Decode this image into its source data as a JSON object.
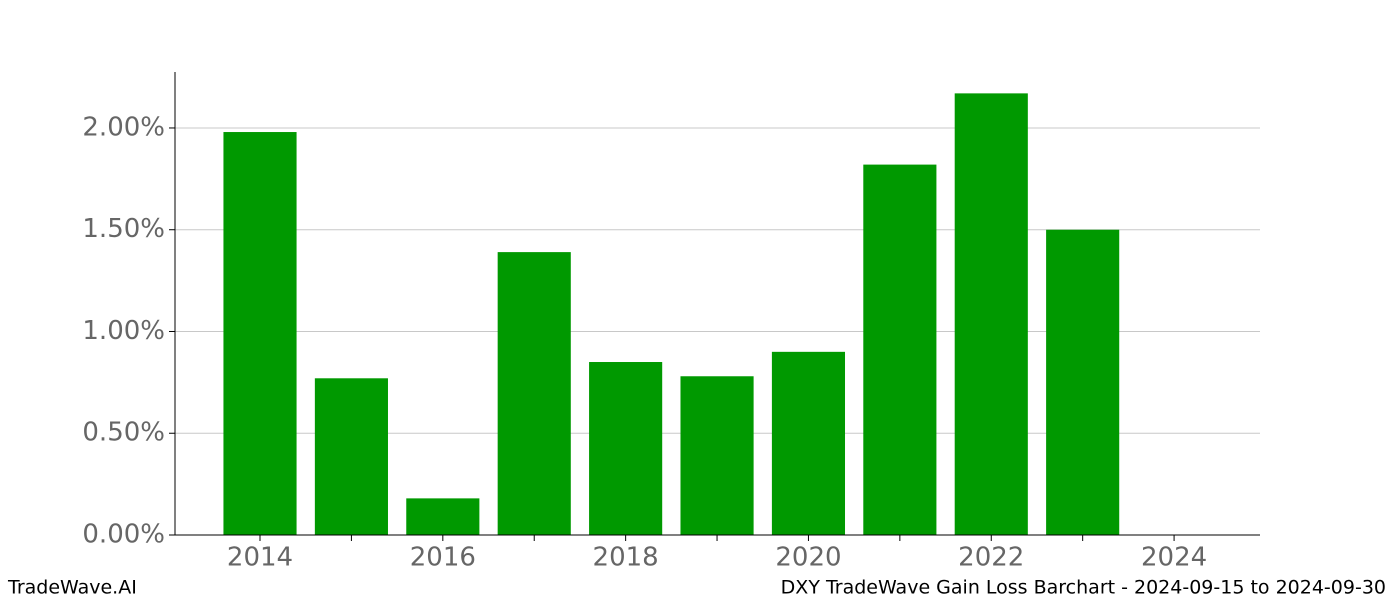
{
  "chart_data": {
    "type": "bar",
    "x": [
      2014,
      2015,
      2016,
      2017,
      2018,
      2019,
      2020,
      2021,
      2022,
      2023
    ],
    "values": [
      1.98,
      0.77,
      0.18,
      1.39,
      0.85,
      0.78,
      0.9,
      1.82,
      2.17,
      1.5
    ],
    "color": "#009900",
    "xlim": [
      2013.07,
      2024.94
    ],
    "xticks": [
      2014,
      2016,
      2018,
      2020,
      2022,
      2024
    ],
    "xticks_minor": [
      2015,
      2017,
      2019,
      2021,
      2023
    ],
    "ylim": [
      0,
      2.275
    ],
    "yticks": [
      {
        "value": 0,
        "label": "0.00%"
      },
      {
        "value": 0.5,
        "label": "0.50%"
      },
      {
        "value": 1,
        "label": "1.00%"
      },
      {
        "value": 1.5,
        "label": "1.50%"
      },
      {
        "value": 2,
        "label": "2.00%"
      }
    ],
    "grid": true,
    "footer_left": "TradeWave.AI",
    "footer_right": "DXY TradeWave Gain Loss Barchart - 2024-09-15 to 2024-09-30"
  }
}
